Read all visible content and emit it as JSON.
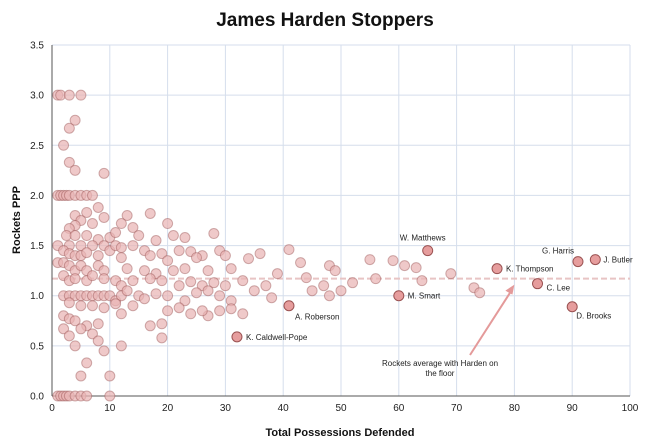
{
  "chart_data": {
    "type": "scatter",
    "title": "James Harden Stoppers",
    "xlabel": "Total Possessions Defended",
    "ylabel": "Rockets PPP",
    "xlim": [
      0,
      100
    ],
    "ylim": [
      0,
      3.5
    ],
    "xticks": [
      "0",
      "10",
      "20",
      "30",
      "40",
      "50",
      "60",
      "70",
      "80",
      "90",
      "100"
    ],
    "yticks": [
      "0.0",
      "0.5",
      "1.0",
      "1.5",
      "2.0",
      "2.5",
      "3.0",
      "3.5"
    ],
    "grid": true,
    "reference_line": {
      "y": 1.17
    },
    "annotation": {
      "text": [
        "Rockets average with Harden on",
        "the floor"
      ]
    },
    "colors": {
      "point_fill": "#e9b4b4",
      "labeled_fill": "#e69d9d",
      "point_stroke": "#9a5252",
      "grid": "#d5deec",
      "ref_line": "#e8c4c4"
    },
    "labeled_points": [
      {
        "x": 65,
        "y": 1.45,
        "label": "W. Matthews"
      },
      {
        "x": 91,
        "y": 1.34,
        "label": "G. Harris"
      },
      {
        "x": 94,
        "y": 1.36,
        "label": "J. Butler"
      },
      {
        "x": 77,
        "y": 1.27,
        "label": "K. Thompson"
      },
      {
        "x": 84,
        "y": 1.12,
        "label": "C. Lee"
      },
      {
        "x": 60,
        "y": 1.0,
        "label": "M. Smart"
      },
      {
        "x": 90,
        "y": 0.89,
        "label": "D. Brooks"
      },
      {
        "x": 41,
        "y": 0.9,
        "label": "A. Roberson"
      },
      {
        "x": 32,
        "y": 0.59,
        "label": "K. Caldwell-Pope"
      }
    ],
    "points": [
      [
        1,
        3.0
      ],
      [
        1.5,
        3.0
      ],
      [
        3,
        3.0
      ],
      [
        5,
        3.0
      ],
      [
        3,
        2.67
      ],
      [
        4,
        2.75
      ],
      [
        2,
        2.5
      ],
      [
        3,
        2.33
      ],
      [
        4,
        2.25
      ],
      [
        9,
        2.22
      ],
      [
        1,
        2.0
      ],
      [
        1.5,
        2.0
      ],
      [
        2,
        2.0
      ],
      [
        2.5,
        2.0
      ],
      [
        3,
        2.0
      ],
      [
        4,
        2.0
      ],
      [
        5,
        2.0
      ],
      [
        6,
        2.0
      ],
      [
        7,
        2.0
      ],
      [
        8,
        1.88
      ],
      [
        9,
        1.78
      ],
      [
        6,
        1.83
      ],
      [
        4,
        1.8
      ],
      [
        5,
        1.75
      ],
      [
        7,
        1.72
      ],
      [
        13,
        1.8
      ],
      [
        17,
        1.82
      ],
      [
        12,
        1.72
      ],
      [
        14,
        1.68
      ],
      [
        20,
        1.72
      ],
      [
        4,
        1.7
      ],
      [
        3,
        1.67
      ],
      [
        2.5,
        1.6
      ],
      [
        4,
        1.6
      ],
      [
        6,
        1.6
      ],
      [
        8,
        1.56
      ],
      [
        10,
        1.58
      ],
      [
        11,
        1.63
      ],
      [
        15,
        1.6
      ],
      [
        18,
        1.55
      ],
      [
        21,
        1.6
      ],
      [
        23,
        1.58
      ],
      [
        28,
        1.62
      ],
      [
        3,
        1.5
      ],
      [
        5,
        1.5
      ],
      [
        7,
        1.5
      ],
      [
        9,
        1.5
      ],
      [
        10,
        1.45
      ],
      [
        11,
        1.5
      ],
      [
        12,
        1.48
      ],
      [
        14,
        1.5
      ],
      [
        16,
        1.45
      ],
      [
        19,
        1.42
      ],
      [
        22,
        1.45
      ],
      [
        24,
        1.44
      ],
      [
        26,
        1.4
      ],
      [
        29,
        1.45
      ],
      [
        1,
        1.5
      ],
      [
        2,
        1.45
      ],
      [
        3,
        1.42
      ],
      [
        4,
        1.4
      ],
      [
        5,
        1.4
      ],
      [
        6,
        1.43
      ],
      [
        8,
        1.4
      ],
      [
        12,
        1.38
      ],
      [
        17,
        1.4
      ],
      [
        20,
        1.35
      ],
      [
        25,
        1.38
      ],
      [
        30,
        1.4
      ],
      [
        34,
        1.37
      ],
      [
        36,
        1.42
      ],
      [
        41,
        1.46
      ],
      [
        43,
        1.33
      ],
      [
        48,
        1.3
      ],
      [
        55,
        1.36
      ],
      [
        59,
        1.35
      ],
      [
        61,
        1.3
      ],
      [
        63,
        1.28
      ],
      [
        1,
        1.33
      ],
      [
        2,
        1.33
      ],
      [
        3,
        1.3
      ],
      [
        4,
        1.25
      ],
      [
        5,
        1.3
      ],
      [
        6,
        1.25
      ],
      [
        8,
        1.3
      ],
      [
        9,
        1.25
      ],
      [
        13,
        1.27
      ],
      [
        16,
        1.25
      ],
      [
        18,
        1.22
      ],
      [
        21,
        1.25
      ],
      [
        23,
        1.27
      ],
      [
        27,
        1.25
      ],
      [
        31,
        1.27
      ],
      [
        39,
        1.22
      ],
      [
        44,
        1.18
      ],
      [
        49,
        1.25
      ],
      [
        56,
        1.17
      ],
      [
        64,
        1.15
      ],
      [
        69,
        1.22
      ],
      [
        2,
        1.2
      ],
      [
        3,
        1.15
      ],
      [
        4,
        1.17
      ],
      [
        6,
        1.15
      ],
      [
        7,
        1.2
      ],
      [
        9,
        1.17
      ],
      [
        11,
        1.15
      ],
      [
        12,
        1.1
      ],
      [
        14,
        1.15
      ],
      [
        17,
        1.17
      ],
      [
        19,
        1.15
      ],
      [
        22,
        1.1
      ],
      [
        24,
        1.14
      ],
      [
        26,
        1.1
      ],
      [
        28,
        1.13
      ],
      [
        30,
        1.1
      ],
      [
        33,
        1.15
      ],
      [
        37,
        1.1
      ],
      [
        47,
        1.1
      ],
      [
        52,
        1.13
      ],
      [
        73,
        1.08
      ],
      [
        74,
        1.03
      ],
      [
        2,
        1.0
      ],
      [
        3,
        1.0
      ],
      [
        4,
        1.0
      ],
      [
        5,
        1.0
      ],
      [
        6,
        1.0
      ],
      [
        7,
        1.0
      ],
      [
        8,
        1.0
      ],
      [
        9,
        1.0
      ],
      [
        10,
        1.0
      ],
      [
        11,
        0.95
      ],
      [
        12,
        1.0
      ],
      [
        13,
        1.05
      ],
      [
        15,
        1.0
      ],
      [
        16,
        0.97
      ],
      [
        18,
        1.02
      ],
      [
        20,
        1.0
      ],
      [
        23,
        0.95
      ],
      [
        25,
        1.03
      ],
      [
        27,
        1.05
      ],
      [
        29,
        1.0
      ],
      [
        31,
        0.95
      ],
      [
        35,
        1.05
      ],
      [
        38,
        0.98
      ],
      [
        45,
        1.05
      ],
      [
        48,
        1.0
      ],
      [
        50,
        1.05
      ],
      [
        3,
        0.93
      ],
      [
        5,
        0.9
      ],
      [
        7,
        0.9
      ],
      [
        9,
        0.88
      ],
      [
        11,
        0.92
      ],
      [
        14,
        0.9
      ],
      [
        20,
        0.85
      ],
      [
        22,
        0.88
      ],
      [
        24,
        0.82
      ],
      [
        27,
        0.8
      ],
      [
        29,
        0.85
      ],
      [
        31,
        0.87
      ],
      [
        33,
        0.82
      ],
      [
        26,
        0.85
      ],
      [
        19,
        0.72
      ],
      [
        12,
        0.82
      ],
      [
        2,
        0.8
      ],
      [
        3,
        0.77
      ],
      [
        4,
        0.75
      ],
      [
        6,
        0.7
      ],
      [
        8,
        0.72
      ],
      [
        2,
        0.67
      ],
      [
        5,
        0.67
      ],
      [
        7,
        0.62
      ],
      [
        8,
        0.55
      ],
      [
        4,
        0.5
      ],
      [
        9,
        0.45
      ],
      [
        12,
        0.5
      ],
      [
        17,
        0.7
      ],
      [
        19,
        0.58
      ],
      [
        3,
        0.6
      ],
      [
        6,
        0.33
      ],
      [
        10,
        0.2
      ],
      [
        5,
        0.2
      ],
      [
        1,
        0.0
      ],
      [
        1.5,
        0.0
      ],
      [
        2,
        0.0
      ],
      [
        2.5,
        0.0
      ],
      [
        3,
        0.0
      ],
      [
        4,
        0.0
      ],
      [
        5,
        0.0
      ],
      [
        6,
        0.0
      ],
      [
        10,
        0.0
      ]
    ]
  }
}
